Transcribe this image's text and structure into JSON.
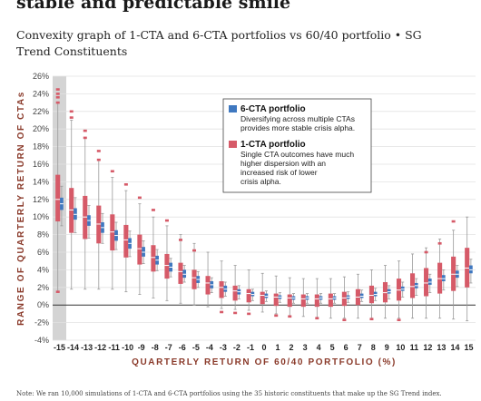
{
  "header": {
    "title": "stable and predictable smile",
    "subtitle": "Convexity graph of 1-CTA and 6-CTA portfolios vs 60/40 portfolio • SG Trend Constituents",
    "footnote": "Note: We ran 10,000 simulations of 1-CTA and 6-CTA portfolios using the 35 historic constituents that make up the SG Trend index."
  },
  "chart_data": {
    "type": "box",
    "xlabel": "QUARTERLY RETURN OF 60/40 PORTFOLIO (%)",
    "ylabel": "RANGE OF QUARTERLY RETURN OF CTAs",
    "ylim": [
      -4,
      26
    ],
    "yticks": [
      "-4%",
      "-2%",
      "0%",
      "2%",
      "4%",
      "6%",
      "8%",
      "10%",
      "12%",
      "14%",
      "16%",
      "18%",
      "20%",
      "22%",
      "24%",
      "26%"
    ],
    "categories": [
      "-15",
      "-14",
      "-13",
      "-12",
      "-11",
      "-10",
      "-9",
      "-8",
      "-7",
      "-6",
      "-5",
      "-4",
      "-3",
      "-2",
      "-1",
      "0",
      "1",
      "2",
      "3",
      "4",
      "5",
      "6",
      "7",
      "8",
      "9",
      "10",
      "11",
      "12",
      "13",
      "14",
      "15"
    ],
    "highlight_category": "-15",
    "series": [
      {
        "name": "1-CTA portfolio",
        "color": "#d65a68",
        "low": [
          1.5,
          1.8,
          1.8,
          1.8,
          1.8,
          1.5,
          1.2,
          0.8,
          0.5,
          0.2,
          0.0,
          -0.2,
          -0.4,
          -0.5,
          -0.6,
          -0.8,
          -1.0,
          -1.2,
          -1.3,
          -1.4,
          -1.5,
          -1.5,
          -1.5,
          -1.5,
          -1.5,
          -1.5,
          -1.5,
          -1.5,
          -1.5,
          -1.6,
          -1.8
        ],
        "q1": [
          9.5,
          8.2,
          7.5,
          7.0,
          6.2,
          5.4,
          4.6,
          3.8,
          3.0,
          2.4,
          1.8,
          1.2,
          0.8,
          0.5,
          0.3,
          0.1,
          -0.1,
          -0.2,
          -0.2,
          -0.2,
          -0.2,
          -0.1,
          0.0,
          0.2,
          0.3,
          0.5,
          0.8,
          1.0,
          1.3,
          1.6,
          2.0
        ],
        "median": [
          12.0,
          10.8,
          10.0,
          9.2,
          8.3,
          7.4,
          6.4,
          5.4,
          4.5,
          3.8,
          3.1,
          2.5,
          2.0,
          1.6,
          1.3,
          1.1,
          0.9,
          0.8,
          0.7,
          0.7,
          0.7,
          0.8,
          0.9,
          1.1,
          1.4,
          1.7,
          2.1,
          2.5,
          3.0,
          3.5,
          4.2
        ],
        "q3": [
          14.8,
          13.3,
          12.4,
          11.3,
          10.3,
          9.1,
          8.0,
          6.8,
          5.8,
          4.8,
          4.0,
          3.3,
          2.7,
          2.2,
          1.8,
          1.5,
          1.3,
          1.2,
          1.2,
          1.2,
          1.3,
          1.5,
          1.8,
          2.2,
          2.6,
          3.0,
          3.6,
          4.2,
          4.8,
          5.5,
          6.5
        ],
        "high": [
          23.0,
          21.0,
          19.0,
          16.5,
          14.5,
          13.0,
          11.5,
          10.0,
          9.0,
          8.0,
          7.0,
          6.0,
          5.0,
          4.5,
          4.0,
          3.6,
          3.3,
          3.1,
          3.0,
          3.0,
          3.0,
          3.2,
          3.5,
          4.0,
          4.5,
          5.0,
          5.8,
          6.5,
          7.5,
          8.5,
          10.0
        ]
      },
      {
        "name": "6-CTA portfolio",
        "color": "#3f78c0",
        "low": [
          9.0,
          8.2,
          7.6,
          7.0,
          6.3,
          5.5,
          4.7,
          3.9,
          3.2,
          2.6,
          2.0,
          1.4,
          1.0,
          0.7,
          0.5,
          0.4,
          0.3,
          0.2,
          0.2,
          0.2,
          0.2,
          0.3,
          0.4,
          0.5,
          0.7,
          0.9,
          1.1,
          1.4,
          1.7,
          2.1,
          2.5
        ],
        "q1": [
          10.8,
          9.7,
          9.0,
          8.2,
          7.3,
          6.4,
          5.5,
          4.6,
          3.8,
          3.1,
          2.5,
          1.9,
          1.5,
          1.2,
          1.0,
          0.8,
          0.7,
          0.6,
          0.6,
          0.6,
          0.6,
          0.7,
          0.8,
          1.0,
          1.3,
          1.6,
          1.9,
          2.3,
          2.7,
          3.1,
          3.6
        ],
        "median": [
          11.5,
          10.3,
          9.6,
          8.8,
          7.9,
          7.0,
          6.0,
          5.1,
          4.3,
          3.5,
          2.9,
          2.3,
          1.8,
          1.5,
          1.2,
          1.0,
          0.9,
          0.8,
          0.8,
          0.8,
          0.8,
          0.9,
          1.0,
          1.2,
          1.5,
          1.8,
          2.2,
          2.6,
          3.0,
          3.5,
          4.0
        ],
        "q3": [
          12.2,
          11.0,
          10.2,
          9.4,
          8.5,
          7.6,
          6.6,
          5.6,
          4.8,
          4.0,
          3.3,
          2.7,
          2.2,
          1.8,
          1.5,
          1.3,
          1.1,
          1.0,
          1.0,
          1.0,
          1.0,
          1.1,
          1.3,
          1.5,
          1.8,
          2.1,
          2.5,
          3.0,
          3.4,
          3.9,
          4.5
        ],
        "high": [
          13.5,
          12.2,
          11.3,
          10.4,
          9.4,
          8.4,
          7.3,
          6.3,
          5.3,
          4.5,
          3.8,
          3.1,
          2.6,
          2.2,
          1.8,
          1.6,
          1.4,
          1.3,
          1.3,
          1.3,
          1.3,
          1.5,
          1.7,
          1.9,
          2.2,
          2.6,
          3.0,
          3.5,
          4.0,
          4.5,
          5.2
        ]
      }
    ],
    "outliers_1cta": [
      {
        "x": "-15",
        "y": 24.5
      },
      {
        "x": "-15",
        "y": 24.0
      },
      {
        "x": "-15",
        "y": 23.6
      },
      {
        "x": "-15",
        "y": 23.0
      },
      {
        "x": "-15",
        "y": 1.5
      },
      {
        "x": "-14",
        "y": 22.0
      },
      {
        "x": "-14",
        "y": 21.3
      },
      {
        "x": "-13",
        "y": 19.8
      },
      {
        "x": "-13",
        "y": 19.0
      },
      {
        "x": "-12",
        "y": 17.5
      },
      {
        "x": "-12",
        "y": 16.5
      },
      {
        "x": "-11",
        "y": 15.2
      },
      {
        "x": "-10",
        "y": 13.7
      },
      {
        "x": "-9",
        "y": 12.2
      },
      {
        "x": "-8",
        "y": 10.8
      },
      {
        "x": "-7",
        "y": 9.6
      },
      {
        "x": "-6",
        "y": 7.4
      },
      {
        "x": "-5",
        "y": 6.2
      },
      {
        "x": "-3",
        "y": -0.8
      },
      {
        "x": "-2",
        "y": -0.9
      },
      {
        "x": "-1",
        "y": -1.0
      },
      {
        "x": "1",
        "y": -1.2
      },
      {
        "x": "2",
        "y": -1.3
      },
      {
        "x": "4",
        "y": -1.5
      },
      {
        "x": "6",
        "y": -1.7
      },
      {
        "x": "8",
        "y": -1.6
      },
      {
        "x": "10",
        "y": -1.7
      },
      {
        "x": "12",
        "y": 6.0
      },
      {
        "x": "13",
        "y": 7.0
      },
      {
        "x": "14",
        "y": 9.5
      }
    ],
    "legend": {
      "position": "top-right",
      "items": [
        {
          "name": "6-CTA portfolio",
          "color": "#3f78c0",
          "description": [
            "Diversifying across multiple CTAs",
            "provides more stable crisis alpha."
          ]
        },
        {
          "name": "1-CTA portfolio",
          "color": "#d65a68",
          "description": [
            "Single CTA outcomes have much",
            "higher dispersion with an",
            "increased risk of lower",
            "crisis alpha."
          ]
        }
      ]
    }
  }
}
